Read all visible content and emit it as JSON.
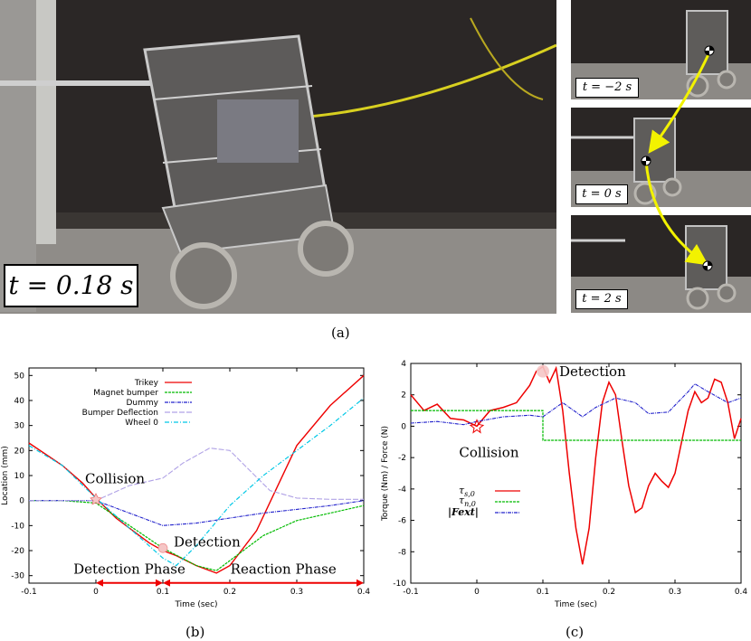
{
  "panel_a": {
    "main_label": "t = 0.18 s",
    "thumbs": [
      "t = −2 s",
      "t = 0 s",
      "t = 2 s"
    ],
    "caption": "(a)"
  },
  "panel_b": {
    "caption": "(b)"
  },
  "panel_c": {
    "caption": "(c)"
  },
  "colors": {
    "red": "#ee0000",
    "green": "#00bb00",
    "blue": "#2222cc",
    "lavender": "#b0a2e6",
    "cyan": "#00c8e6",
    "arrow_yellow": "#f2f200"
  },
  "chart_data": [
    {
      "type": "line",
      "xlabel": "Time (sec)",
      "ylabel": "Location (mm)",
      "xlim": [
        -0.1,
        0.4
      ],
      "ylim": [
        -33,
        53
      ],
      "xticks": [
        "-0.1",
        "0",
        "0.1",
        "0.2",
        "0.3",
        "0.4"
      ],
      "yticks": [
        "50",
        "40",
        "30",
        "20",
        "10",
        "0",
        "-10",
        "-20",
        "-30"
      ],
      "grid": false,
      "legend": "top-right",
      "annotations": [
        {
          "text": "Collision",
          "x": 0.0,
          "y": 4
        },
        {
          "text": "Detection",
          "x": 0.1,
          "y": -17
        },
        {
          "text": "Detection Phase",
          "x": 0.05,
          "y": -30
        },
        {
          "text": "Reaction Phase",
          "x": 0.27,
          "y": -30
        }
      ],
      "series": [
        {
          "name": "Trikey",
          "color": "#ee0000",
          "x": [
            -0.1,
            -0.05,
            -0.02,
            0.0,
            0.03,
            0.06,
            0.08,
            0.1,
            0.12,
            0.15,
            0.18,
            0.2,
            0.24,
            0.27,
            0.3,
            0.35,
            0.4
          ],
          "y": [
            23,
            14,
            7,
            1,
            -7,
            -13,
            -17,
            -20,
            -22,
            -26,
            -29,
            -26,
            -12,
            5,
            22,
            38,
            50
          ]
        },
        {
          "name": "Magnet bumper",
          "color": "#00bb00",
          "x": [
            -0.1,
            -0.05,
            0.0,
            0.05,
            0.1,
            0.15,
            0.18,
            0.2,
            0.25,
            0.3,
            0.35,
            0.4
          ],
          "y": [
            0,
            0,
            -1,
            -10,
            -19,
            -26,
            -28,
            -24,
            -14,
            -8,
            -5,
            -2
          ]
        },
        {
          "name": "Dummy",
          "color": "#2222cc",
          "x": [
            -0.1,
            0.0,
            0.05,
            0.1,
            0.15,
            0.2,
            0.25,
            0.3,
            0.35,
            0.4
          ],
          "y": [
            0,
            0,
            -5,
            -10,
            -9,
            -7,
            -5,
            -3.5,
            -2,
            0
          ]
        },
        {
          "name": "Bumper Deflection",
          "color": "#b0a2e6",
          "x": [
            -0.1,
            0.0,
            0.05,
            0.1,
            0.13,
            0.17,
            0.2,
            0.23,
            0.26,
            0.3,
            0.35,
            0.4
          ],
          "y": [
            0,
            0,
            6,
            9,
            15,
            21,
            20,
            12,
            4,
            1,
            0.5,
            0.5
          ]
        },
        {
          "name": "Wheel 0",
          "color": "#00c8e6",
          "x": [
            -0.1,
            -0.05,
            0.0,
            0.05,
            0.1,
            0.12,
            0.15,
            0.2,
            0.25,
            0.3,
            0.35,
            0.4
          ],
          "y": [
            22,
            14,
            1,
            -11,
            -23,
            -26,
            -18,
            -2,
            10,
            20,
            30,
            41
          ]
        }
      ]
    },
    {
      "type": "line",
      "xlabel": "Time (sec)",
      "ylabel": "Torque (Nm) / Force (N)",
      "xlim": [
        -0.1,
        0.4
      ],
      "ylim": [
        -10,
        4
      ],
      "xticks": [
        "-0.1",
        "0",
        "0.1",
        "0.2",
        "0.3",
        "0.4"
      ],
      "yticks": [
        "4",
        "2",
        "0",
        "-2",
        "-4",
        "-6",
        "-8",
        "-10"
      ],
      "grid": false,
      "legend": "lower-left",
      "annotations": [
        {
          "text": "Detection",
          "x": 0.1,
          "y": 3.3
        },
        {
          "text": "Collision",
          "x": -0.02,
          "y": -1.4
        }
      ],
      "series": [
        {
          "name": "τs,0",
          "color": "#ee0000",
          "x": [
            -0.1,
            -0.08,
            -0.06,
            -0.04,
            -0.02,
            0.0,
            0.02,
            0.04,
            0.06,
            0.08,
            0.09,
            0.1,
            0.11,
            0.12,
            0.13,
            0.14,
            0.15,
            0.16,
            0.17,
            0.18,
            0.19,
            0.2,
            0.21,
            0.22,
            0.23,
            0.24,
            0.25,
            0.26,
            0.27,
            0.28,
            0.29,
            0.3,
            0.31,
            0.32,
            0.33,
            0.34,
            0.35,
            0.36,
            0.37,
            0.38,
            0.39,
            0.4
          ],
          "y": [
            2.0,
            1.0,
            1.4,
            0.5,
            0.4,
            0.0,
            1.0,
            1.2,
            1.5,
            2.6,
            3.5,
            3.8,
            2.8,
            3.7,
            1.0,
            -3.0,
            -6.5,
            -8.8,
            -6.5,
            -2.0,
            1.5,
            2.8,
            2.0,
            -1.0,
            -3.8,
            -5.5,
            -5.2,
            -3.8,
            -3.0,
            -3.5,
            -3.9,
            -3.0,
            -1.0,
            1.0,
            2.2,
            1.5,
            1.8,
            3.0,
            2.8,
            1.5,
            -0.8,
            0.5
          ]
        },
        {
          "name": "τn,0",
          "color": "#00bb00",
          "x": [
            -0.1,
            0.1,
            0.1,
            0.4
          ],
          "y": [
            1.0,
            1.0,
            -0.9,
            -0.9
          ]
        },
        {
          "name": "|Fext|",
          "color": "#2222cc",
          "x": [
            -0.1,
            -0.06,
            -0.02,
            0.0,
            0.04,
            0.08,
            0.1,
            0.13,
            0.16,
            0.18,
            0.21,
            0.24,
            0.26,
            0.29,
            0.32,
            0.33,
            0.35,
            0.38,
            0.4
          ],
          "y": [
            0.2,
            0.3,
            0.1,
            0.3,
            0.6,
            0.7,
            0.6,
            1.5,
            0.6,
            1.2,
            1.8,
            1.5,
            0.8,
            0.9,
            2.2,
            2.7,
            2.2,
            1.5,
            1.8
          ]
        }
      ]
    }
  ]
}
